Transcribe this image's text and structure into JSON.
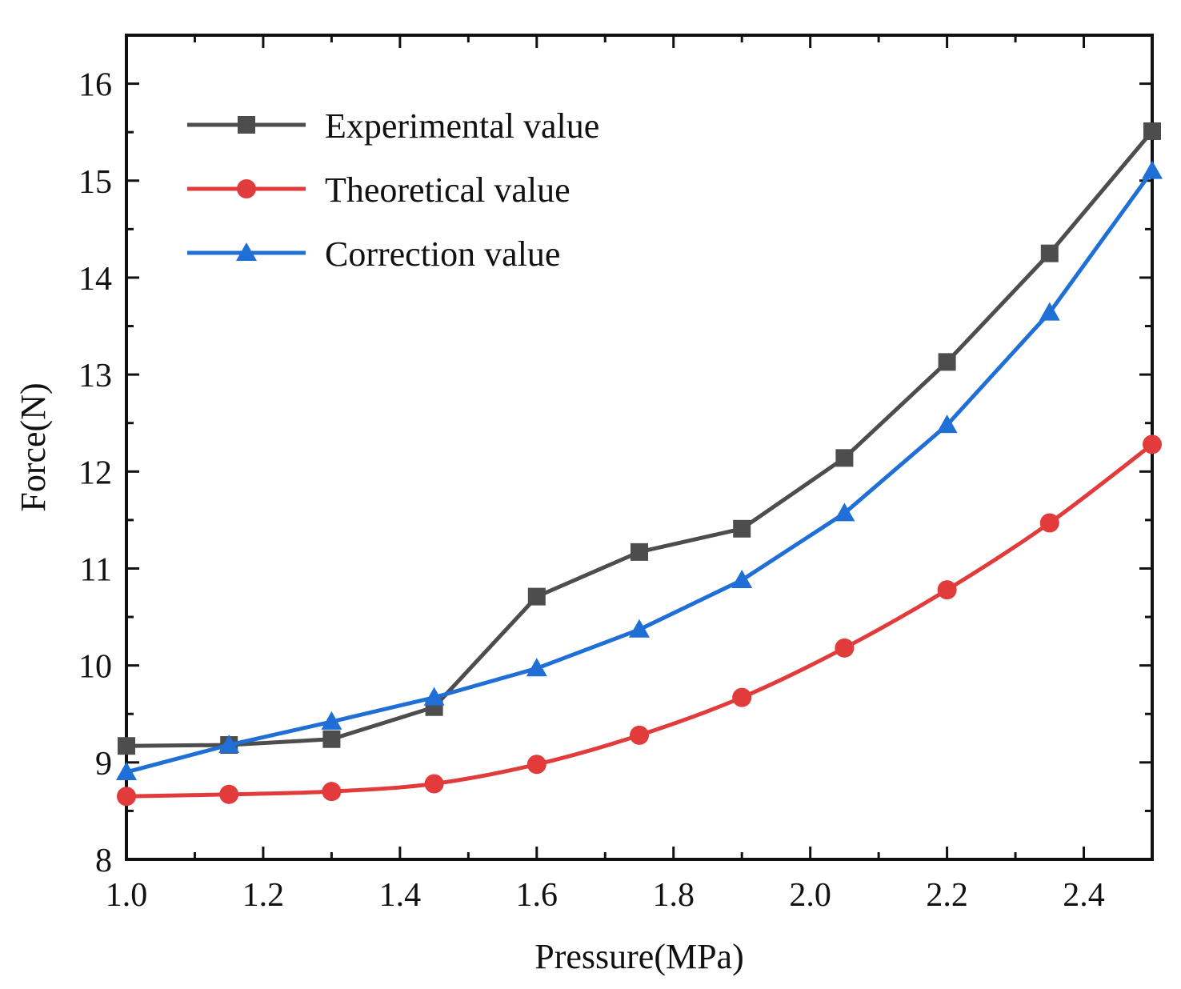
{
  "chart_data": {
    "type": "line",
    "title": "",
    "xlabel": "Pressure(MPa)",
    "ylabel": "Force(N)",
    "xlim": [
      1.0,
      2.5
    ],
    "ylim": [
      8,
      16.5
    ],
    "x_ticks": [
      1.0,
      1.2,
      1.4,
      1.6,
      1.8,
      2.0,
      2.2,
      2.4
    ],
    "x_tick_labels": [
      "1.0",
      "1.2",
      "1.4",
      "1.6",
      "1.8",
      "2.0",
      "2.2",
      "2.4"
    ],
    "y_ticks": [
      8,
      9,
      10,
      11,
      12,
      13,
      14,
      15,
      16
    ],
    "y_tick_labels": [
      "8",
      "9",
      "10",
      "11",
      "12",
      "13",
      "14",
      "15",
      "16"
    ],
    "grid": false,
    "legend_position": "top-left",
    "x": [
      1.0,
      1.15,
      1.3,
      1.45,
      1.6,
      1.75,
      1.9,
      2.05,
      2.2,
      2.35,
      2.5
    ],
    "series": [
      {
        "name": "Experimental value",
        "marker": "square",
        "color": "#4d4d4d",
        "smooth": false,
        "values": [
          9.17,
          9.18,
          9.24,
          9.57,
          10.71,
          11.17,
          11.41,
          12.14,
          13.13,
          14.25,
          15.51
        ]
      },
      {
        "name": "Theoretical value",
        "marker": "circle",
        "color": "#e23b3b",
        "smooth": true,
        "values": [
          8.65,
          8.67,
          8.7,
          8.78,
          8.98,
          9.28,
          9.67,
          10.18,
          10.78,
          11.47,
          12.28
        ]
      },
      {
        "name": "Correction value",
        "marker": "triangle",
        "color": "#1f6fd6",
        "smooth": false,
        "values": [
          8.9,
          9.18,
          9.42,
          9.67,
          9.97,
          10.37,
          10.88,
          11.57,
          12.48,
          13.64,
          15.1
        ]
      }
    ]
  }
}
